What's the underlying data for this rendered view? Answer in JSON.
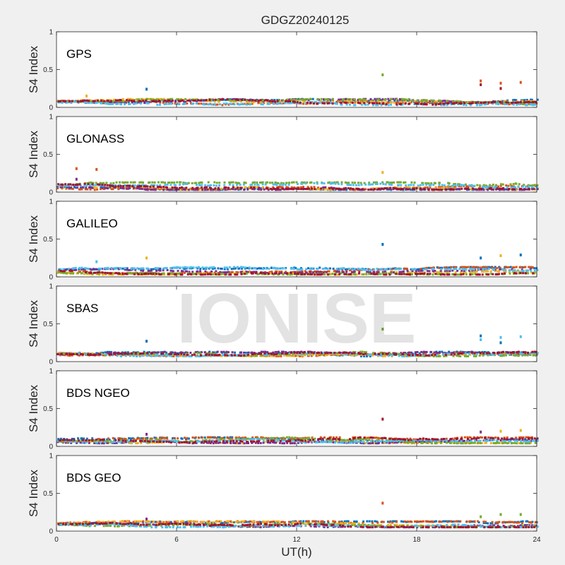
{
  "title": "GDGZ20240125",
  "watermark": "IONISE",
  "colors": {
    "background": "#f0f0f0",
    "axes_bg": "#ffffff",
    "series": [
      "#0072bd",
      "#d95319",
      "#edb120",
      "#7e2f8e",
      "#77ac30",
      "#4dbeee",
      "#a2142f"
    ]
  },
  "chart_data": [
    {
      "type": "scatter",
      "panel_label": "GPS",
      "ylabel": "S4 Index",
      "xlabel": "",
      "xlim": [
        0,
        24
      ],
      "ylim": [
        0,
        1
      ],
      "xticks": [
        0,
        6,
        12,
        18,
        24
      ],
      "yticks": [
        0,
        0.5,
        1
      ],
      "ytick_labels": [
        "0",
        "0.5",
        "1"
      ],
      "baseline": 0.07,
      "spread": 0.04,
      "outliers": [
        {
          "x": 4.5,
          "y": 0.24,
          "color": "#0072bd"
        },
        {
          "x": 16.3,
          "y": 0.43,
          "color": "#77ac30"
        },
        {
          "x": 21.2,
          "y": 0.35,
          "color": "#d95319"
        },
        {
          "x": 21.2,
          "y": 0.3,
          "color": "#a2142f"
        },
        {
          "x": 22.2,
          "y": 0.32,
          "color": "#d95319"
        },
        {
          "x": 22.2,
          "y": 0.25,
          "color": "#a2142f"
        },
        {
          "x": 23.2,
          "y": 0.33,
          "color": "#d95319"
        },
        {
          "x": 1.5,
          "y": 0.15,
          "color": "#edb120"
        }
      ]
    },
    {
      "type": "scatter",
      "panel_label": "GLONASS",
      "ylabel": "S4 Index",
      "xlabel": "",
      "xlim": [
        0,
        24
      ],
      "ylim": [
        0,
        1
      ],
      "xticks": [
        0,
        6,
        12,
        18,
        24
      ],
      "yticks": [
        0,
        0.5,
        1
      ],
      "ytick_labels": [
        "0",
        "0.5",
        "1"
      ],
      "baseline": 0.08,
      "spread": 0.05,
      "outliers": [
        {
          "x": 1.0,
          "y": 0.31,
          "color": "#d95319"
        },
        {
          "x": 2.0,
          "y": 0.3,
          "color": "#d95319"
        },
        {
          "x": 16.3,
          "y": 0.26,
          "color": "#edb120"
        },
        {
          "x": 1.0,
          "y": 0.17,
          "color": "#7e2f8e"
        }
      ]
    },
    {
      "type": "scatter",
      "panel_label": "GALILEO",
      "ylabel": "S4 Index",
      "xlabel": "",
      "xlim": [
        0,
        24
      ],
      "ylim": [
        0,
        1
      ],
      "xticks": [
        0,
        6,
        12,
        18,
        24
      ],
      "yticks": [
        0,
        0.5,
        1
      ],
      "ytick_labels": [
        "0",
        "0.5",
        "1"
      ],
      "baseline": 0.08,
      "spread": 0.05,
      "outliers": [
        {
          "x": 4.5,
          "y": 0.25,
          "color": "#edb120"
        },
        {
          "x": 16.3,
          "y": 0.43,
          "color": "#0072bd"
        },
        {
          "x": 21.2,
          "y": 0.25,
          "color": "#0072bd"
        },
        {
          "x": 22.2,
          "y": 0.28,
          "color": "#edb120"
        },
        {
          "x": 23.2,
          "y": 0.29,
          "color": "#0072bd"
        },
        {
          "x": 2.0,
          "y": 0.2,
          "color": "#4dbeee"
        }
      ]
    },
    {
      "type": "scatter",
      "panel_label": "SBAS",
      "ylabel": "S4 Index",
      "xlabel": "",
      "xlim": [
        0,
        24
      ],
      "ylim": [
        0,
        1
      ],
      "xticks": [
        0,
        6,
        12,
        18,
        24
      ],
      "yticks": [
        0,
        0.5,
        1
      ],
      "ytick_labels": [
        "0",
        "0.5",
        "1"
      ],
      "baseline": 0.1,
      "spread": 0.03,
      "outliers": [
        {
          "x": 4.5,
          "y": 0.27,
          "color": "#0072bd"
        },
        {
          "x": 16.3,
          "y": 0.43,
          "color": "#77ac30"
        },
        {
          "x": 21.2,
          "y": 0.34,
          "color": "#0072bd"
        },
        {
          "x": 21.2,
          "y": 0.29,
          "color": "#4dbeee"
        },
        {
          "x": 22.2,
          "y": 0.32,
          "color": "#4dbeee"
        },
        {
          "x": 22.2,
          "y": 0.25,
          "color": "#0072bd"
        },
        {
          "x": 23.2,
          "y": 0.33,
          "color": "#4dbeee"
        }
      ]
    },
    {
      "type": "scatter",
      "panel_label": "BDS NGEO",
      "ylabel": "S4 Index",
      "xlabel": "",
      "xlim": [
        0,
        24
      ],
      "ylim": [
        0,
        1
      ],
      "xticks": [
        0,
        6,
        12,
        18,
        24
      ],
      "yticks": [
        0,
        0.5,
        1
      ],
      "ytick_labels": [
        "0",
        "0.5",
        "1"
      ],
      "baseline": 0.08,
      "spread": 0.04,
      "outliers": [
        {
          "x": 16.3,
          "y": 0.36,
          "color": "#a2142f"
        },
        {
          "x": 4.5,
          "y": 0.16,
          "color": "#7e2f8e"
        },
        {
          "x": 21.2,
          "y": 0.19,
          "color": "#7e2f8e"
        },
        {
          "x": 22.2,
          "y": 0.2,
          "color": "#edb120"
        },
        {
          "x": 23.2,
          "y": 0.21,
          "color": "#edb120"
        }
      ]
    },
    {
      "type": "scatter",
      "panel_label": "BDS GEO",
      "ylabel": "S4 Index",
      "xlabel": "UT(h)",
      "xlim": [
        0,
        24
      ],
      "ylim": [
        0,
        1
      ],
      "xticks": [
        0,
        6,
        12,
        18,
        24
      ],
      "yticks": [
        0,
        0.5,
        1
      ],
      "ytick_labels": [
        "0",
        "0.5",
        "1"
      ],
      "baseline": 0.09,
      "spread": 0.04,
      "outliers": [
        {
          "x": 16.3,
          "y": 0.37,
          "color": "#d95319"
        },
        {
          "x": 4.5,
          "y": 0.16,
          "color": "#7e2f8e"
        },
        {
          "x": 21.2,
          "y": 0.19,
          "color": "#77ac30"
        },
        {
          "x": 22.2,
          "y": 0.22,
          "color": "#77ac30"
        },
        {
          "x": 23.2,
          "y": 0.22,
          "color": "#77ac30"
        }
      ]
    }
  ]
}
